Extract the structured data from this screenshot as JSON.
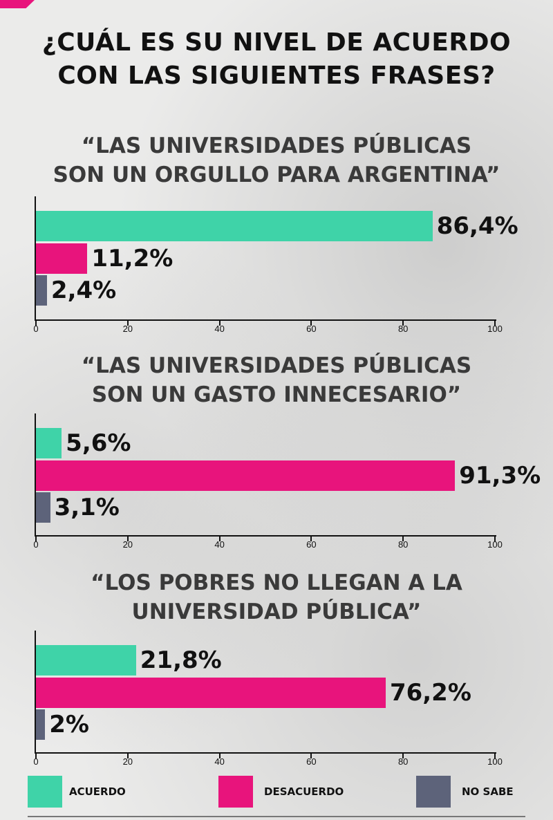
{
  "title": {
    "line1": "¿CUÁL ES SU NIVEL DE ACUERDO",
    "line2": "CON LAS SIGUIENTES FRASES?"
  },
  "colors": {
    "acuerdo": "#3fd3a8",
    "desacuerdo": "#e8147c",
    "no_sabe": "#5d637a"
  },
  "legend": [
    {
      "label": "ACUERDO",
      "color": "#3fd3a8"
    },
    {
      "label": "DESACUERDO",
      "color": "#e8147c"
    },
    {
      "label": "NO SABE",
      "color": "#5d637a"
    }
  ],
  "chart_data": [
    {
      "type": "bar",
      "orientation": "horizontal",
      "title_lines": [
        "“LAS UNIVERSIDADES PÚBLICAS",
        "SON UN ORGULLO PARA ARGENTINA”"
      ],
      "categories": [
        "Acuerdo",
        "Desacuerdo",
        "No sabe"
      ],
      "values": [
        86.4,
        11.2,
        2.4
      ],
      "value_labels": [
        "86,4%",
        "11,2%",
        "2,4%"
      ],
      "xlim": [
        0,
        100
      ],
      "ticks": [
        "0",
        "20",
        "40",
        "60",
        "80",
        "100"
      ]
    },
    {
      "type": "bar",
      "orientation": "horizontal",
      "title_lines": [
        "“LAS UNIVERSIDADES PÚBLICAS",
        "SON UN GASTO INNECESARIO”"
      ],
      "categories": [
        "Acuerdo",
        "Desacuerdo",
        "No sabe"
      ],
      "values": [
        5.6,
        91.3,
        3.1
      ],
      "value_labels": [
        "5,6%",
        "91,3%",
        "3,1%"
      ],
      "xlim": [
        0,
        100
      ],
      "ticks": [
        "0",
        "20",
        "40",
        "60",
        "80",
        "100"
      ]
    },
    {
      "type": "bar",
      "orientation": "horizontal",
      "title_lines": [
        "“LOS POBRES NO LLEGAN A LA",
        "UNIVERSIDAD PÚBLICA”"
      ],
      "categories": [
        "Acuerdo",
        "Desacuerdo",
        "No sabe"
      ],
      "values": [
        21.8,
        76.2,
        2.0
      ],
      "value_labels": [
        "21,8%",
        "76,2%",
        "2%"
      ],
      "xlim": [
        0,
        100
      ],
      "ticks": [
        "0",
        "20",
        "40",
        "60",
        "80",
        "100"
      ]
    }
  ]
}
